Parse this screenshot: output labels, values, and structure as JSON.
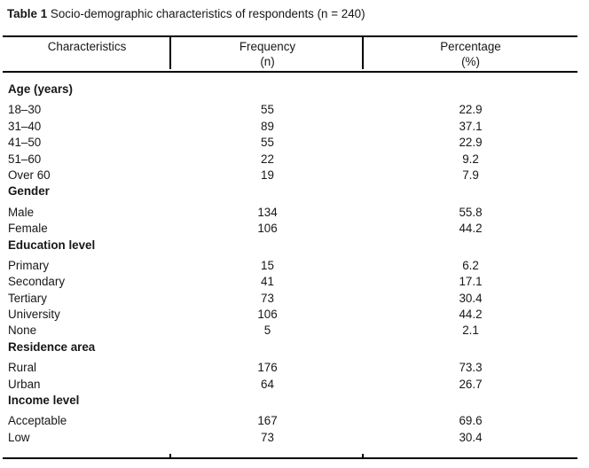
{
  "title": {
    "prefix": "Table 1",
    "rest": "Socio-demographic characteristics of respondents (n = 240)"
  },
  "table": {
    "columns": [
      {
        "label": "Characteristics",
        "sub": ""
      },
      {
        "label": "Frequency",
        "sub": "(n)"
      },
      {
        "label": "Percentage",
        "sub": "(%)"
      }
    ],
    "sections": [
      {
        "header": "Age (years)",
        "rows": [
          [
            "18–30",
            "55",
            "22.9"
          ],
          [
            "31–40",
            "89",
            "37.1"
          ],
          [
            "41–50",
            "55",
            "22.9"
          ],
          [
            "51–60",
            "22",
            "9.2"
          ],
          [
            "Over 60",
            "19",
            "7.9"
          ]
        ]
      },
      {
        "header": "Gender",
        "rows": [
          [
            "Male",
            "134",
            "55.8"
          ],
          [
            "Female",
            "106",
            "44.2"
          ]
        ]
      },
      {
        "header": "Education level",
        "rows": [
          [
            "Primary",
            "15",
            "6.2"
          ],
          [
            "Secondary",
            "41",
            "17.1"
          ],
          [
            "Tertiary",
            "73",
            "30.4"
          ],
          [
            "University",
            "106",
            "44.2"
          ],
          [
            "None",
            "5",
            "2.1"
          ]
        ]
      },
      {
        "header": "Residence area",
        "rows": [
          [
            "Rural",
            "176",
            "73.3"
          ],
          [
            "Urban",
            "64",
            "26.7"
          ]
        ]
      },
      {
        "header": "Income level",
        "rows": [
          [
            "Acceptable",
            "167",
            "69.6"
          ],
          [
            "Low",
            "73",
            "30.4"
          ]
        ]
      }
    ]
  },
  "colors": {
    "text": "#171717",
    "rule": "#000000",
    "background": "#ffffff"
  }
}
